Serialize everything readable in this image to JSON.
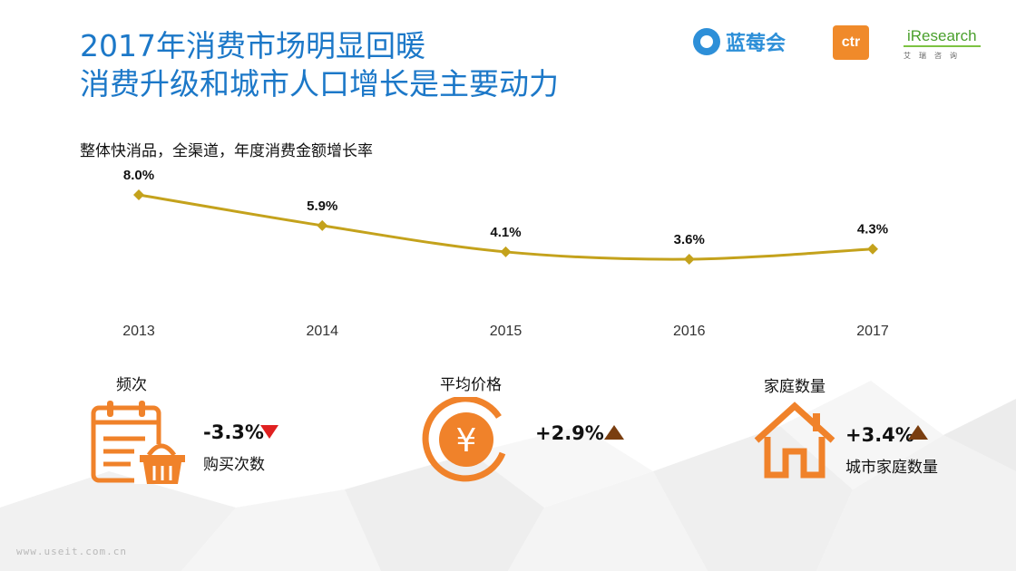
{
  "title": {
    "line1": "2017年消费市场明显回暖",
    "line2": "消费升级和城市人口增长是主要动力"
  },
  "logos": {
    "lanmeihui": "蓝莓会",
    "ctr": "ctr",
    "iresearch": "iResearch",
    "iresearch_sub": "艾瑞咨询"
  },
  "colors": {
    "title": "#1c78c8",
    "line": "#c4a21c",
    "orange": "#f0822a",
    "down": "#e02020",
    "up": "#7a3e10"
  },
  "chart_data": {
    "type": "line",
    "title": "整体快消品，全渠道，年度消费金额增长率",
    "x": [
      "2013",
      "2014",
      "2015",
      "2016",
      "2017"
    ],
    "values": [
      8.0,
      5.9,
      4.1,
      3.6,
      4.3
    ],
    "labels": [
      "8.0%",
      "5.9%",
      "4.1%",
      "3.6%",
      "4.3%"
    ],
    "unit": "%",
    "grid": false,
    "legend": "none"
  },
  "kpis": [
    {
      "title": "频次",
      "value": "-3.3%",
      "direction": "down",
      "sub": "购买次数",
      "icon": "calendar-basket-icon"
    },
    {
      "title": "平均价格",
      "value": "+2.9%",
      "direction": "up",
      "sub": "",
      "icon": "yuan-circle-icon"
    },
    {
      "title": "家庭数量",
      "value": "+3.4%",
      "direction": "up",
      "sub": "城市家庭数量",
      "icon": "house-icon"
    }
  ],
  "watermark": "www.useit.com.cn"
}
